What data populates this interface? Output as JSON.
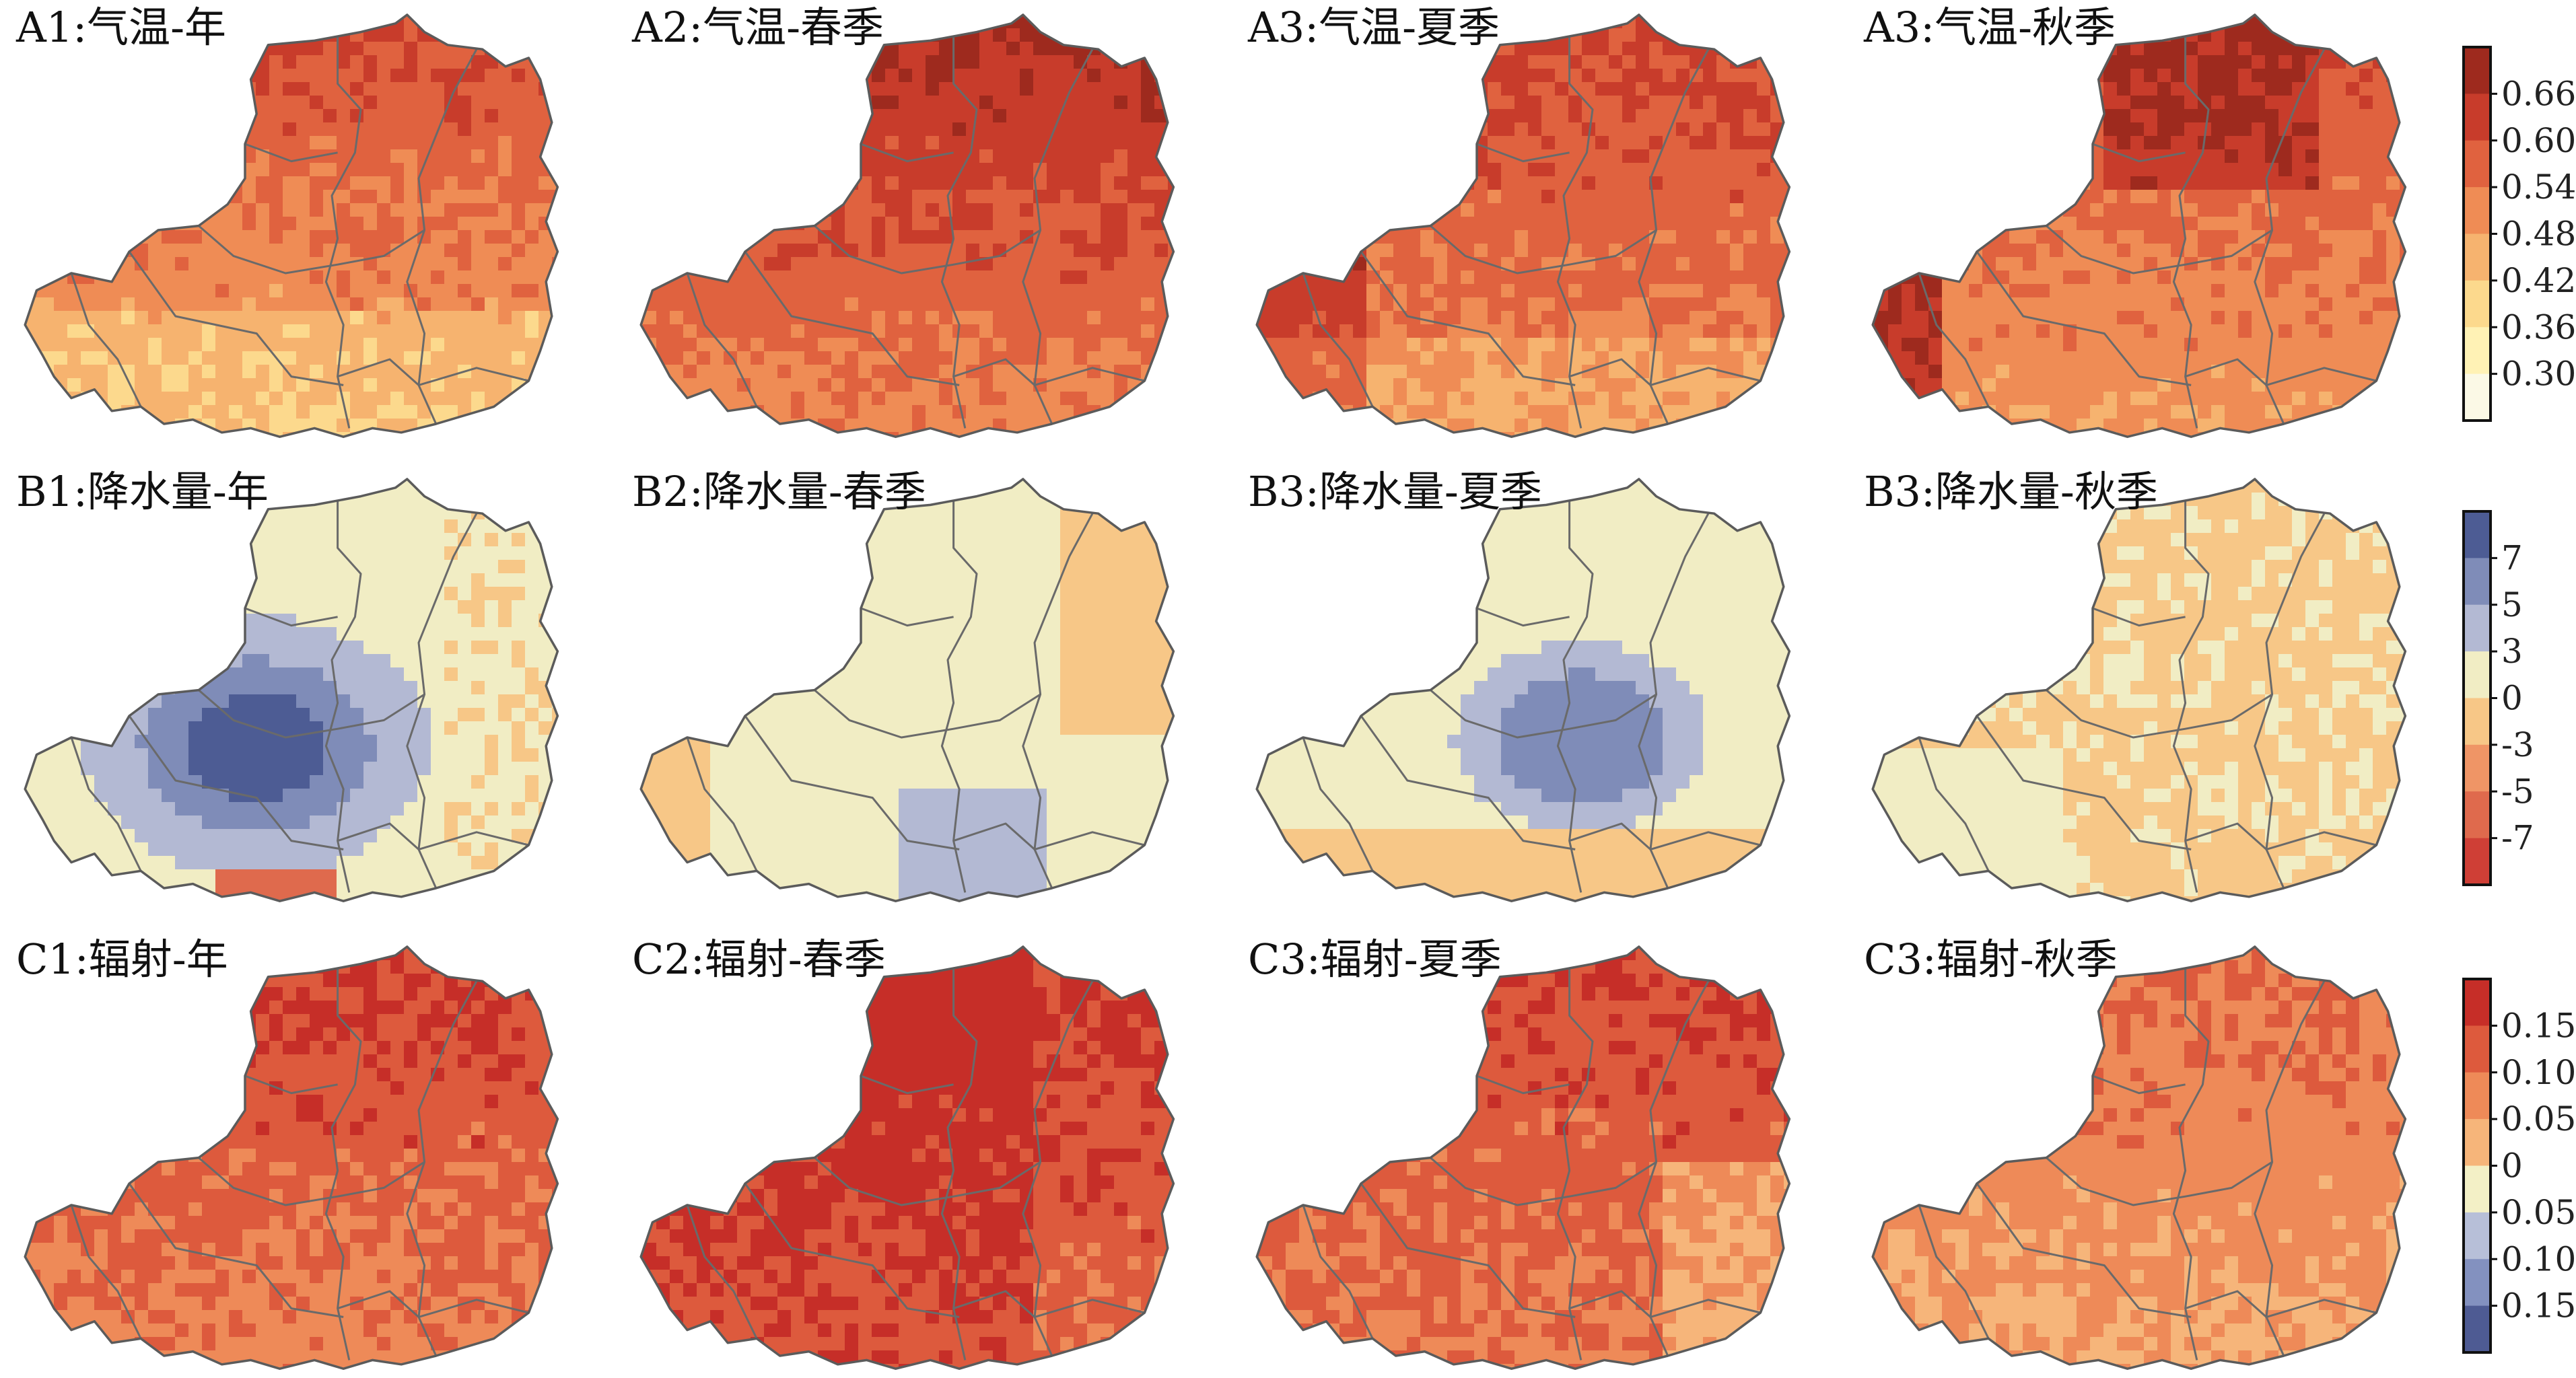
{
  "panels": [
    {
      "title": "A1:气温-年",
      "palette": "temp",
      "style": "annual_temp",
      "row": 0,
      "col": 0
    },
    {
      "title": "A2:气温-春季",
      "palette": "temp",
      "style": "spring_temp",
      "row": 0,
      "col": 1
    },
    {
      "title": "A3:气温-夏季",
      "palette": "temp",
      "style": "summer_temp",
      "row": 0,
      "col": 2
    },
    {
      "title": "A3:气温-秋季",
      "palette": "temp",
      "style": "autumn_temp",
      "row": 0,
      "col": 3
    },
    {
      "title": "B1:降水量-年",
      "palette": "precip",
      "style": "annual_precip",
      "row": 1,
      "col": 0
    },
    {
      "title": "B2:降水量-春季",
      "palette": "precip",
      "style": "spring_precip",
      "row": 1,
      "col": 1
    },
    {
      "title": "B3:降水量-夏季",
      "palette": "precip",
      "style": "summer_precip",
      "row": 1,
      "col": 2
    },
    {
      "title": "B3:降水量-秋季",
      "palette": "precip",
      "style": "autumn_precip",
      "row": 1,
      "col": 3
    },
    {
      "title": "C1:辐射-年",
      "palette": "rad",
      "style": "annual_rad",
      "row": 2,
      "col": 0
    },
    {
      "title": "C2:辐射-春季",
      "palette": "rad",
      "style": "spring_rad",
      "row": 2,
      "col": 1
    },
    {
      "title": "C3:辐射-夏季",
      "palette": "rad",
      "style": "summer_rad",
      "row": 2,
      "col": 2
    },
    {
      "title": "C3:辐射-秋季",
      "palette": "rad",
      "style": "autumn_rad",
      "row": 2,
      "col": 3
    }
  ],
  "colorbars": [
    {
      "row": 0,
      "labels": [
        "0.66",
        "0.60",
        "0.54",
        "0.48",
        "0.42",
        "0.36",
        "0.30"
      ],
      "colors": [
        "#9e2a1e",
        "#c83c2b",
        "#e0623f",
        "#ef8c55",
        "#f6b36f",
        "#fcd98d",
        "#fff2b5",
        "#fbf9e6"
      ]
    },
    {
      "row": 1,
      "labels": [
        "7",
        "5",
        "3",
        "0",
        "-3",
        "-5",
        "-7"
      ],
      "colors": [
        "#4d5c94",
        "#7f8cb8",
        "#b3b9d3",
        "#f1edc4",
        "#f7c787",
        "#ef9566",
        "#df6a4d",
        "#cf3f36"
      ]
    },
    {
      "row": 2,
      "labels": [
        "0.15",
        "0.10",
        "0.05",
        "0",
        "0.05",
        "0.10",
        "0.15"
      ],
      "colors": [
        "#c62e28",
        "#dd5a3d",
        "#ee8a58",
        "#f6b57a",
        "#f3f0c6",
        "#b7bfd8",
        "#8391bf",
        "#4e5b93"
      ]
    }
  ],
  "palettes": {
    "temp": [
      "#fbf9e6",
      "#fff2b5",
      "#fcd98d",
      "#f6b36f",
      "#ef8c55",
      "#e0623f",
      "#c83c2b",
      "#9e2a1e"
    ],
    "precip": [
      "#cf3f36",
      "#df6a4d",
      "#ef9566",
      "#f7c787",
      "#f1edc4",
      "#b3b9d3",
      "#7f8cb8",
      "#4d5c94"
    ],
    "rad": [
      "#4e5b93",
      "#8391bf",
      "#b7bfd8",
      "#f3f0c6",
      "#f6b57a",
      "#ee8a58",
      "#dd5a3d",
      "#c62e28"
    ]
  }
}
